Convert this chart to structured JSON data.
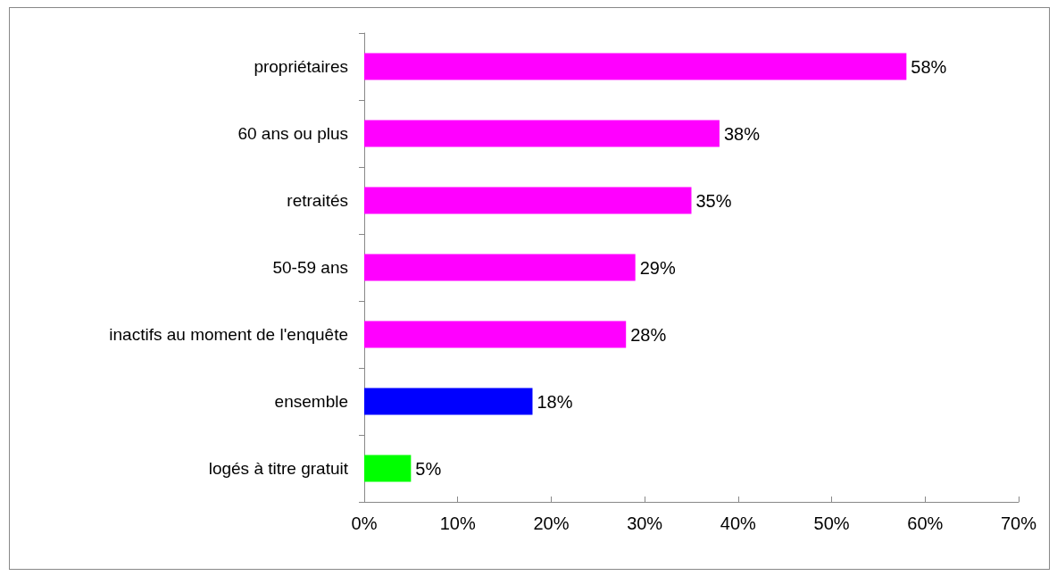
{
  "chart_data": {
    "type": "bar",
    "orientation": "horizontal",
    "categories": [
      "propriétaires",
      "60 ans ou plus",
      "retraités",
      "50-59 ans",
      "inactifs au moment de l'enquête",
      "ensemble",
      "logés à titre gratuit"
    ],
    "values": [
      58,
      38,
      35,
      29,
      28,
      18,
      5
    ],
    "colors": [
      "#ff00ff",
      "#ff00ff",
      "#ff00ff",
      "#ff00ff",
      "#ff00ff",
      "#0000ff",
      "#00ff00"
    ],
    "value_labels": [
      "58%",
      "38%",
      "35%",
      "29%",
      "28%",
      "18%",
      "5%"
    ],
    "xlim": [
      0,
      70
    ],
    "xticks": [
      {
        "value": 0,
        "label": "0%"
      },
      {
        "value": 10,
        "label": "10%"
      },
      {
        "value": 20,
        "label": "20%"
      },
      {
        "value": 30,
        "label": "30%"
      },
      {
        "value": 40,
        "label": "40%"
      },
      {
        "value": 50,
        "label": "50%"
      },
      {
        "value": 60,
        "label": "60%"
      },
      {
        "value": 70,
        "label": "70%"
      }
    ],
    "grid": false
  }
}
